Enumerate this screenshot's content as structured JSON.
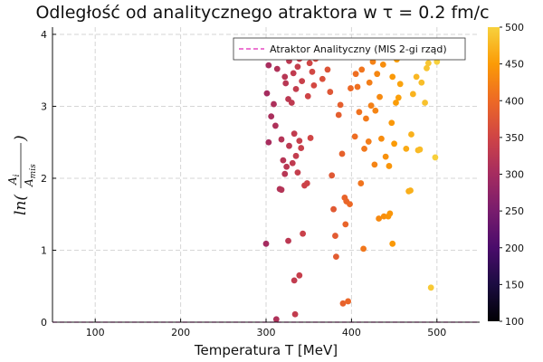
{
  "chart_data": {
    "type": "scatter",
    "title": "Odległość od analitycznego atraktora w τ = 0.2 fm/c",
    "xlabel": "Temperatura T [MeV]",
    "ylabel": {
      "prefix": "ln(",
      "numerator": "A",
      "numerator_sub": "i",
      "denominator": "A",
      "denominator_sub": "mis",
      "suffix": ")"
    },
    "xlim": [
      50,
      550
    ],
    "ylim": [
      0,
      4.1
    ],
    "xticks": [
      100,
      200,
      300,
      400,
      500
    ],
    "xtick_labels": [
      "100",
      "200",
      "300",
      "400",
      "500"
    ],
    "yticks": [
      0,
      1,
      2,
      3,
      4
    ],
    "ytick_labels": [
      "0",
      "1",
      "2",
      "3",
      "4"
    ],
    "grid": true,
    "colormap": "inferno",
    "colorbar": {
      "range": [
        100,
        500
      ],
      "ticks": [
        100,
        150,
        200,
        250,
        300,
        350,
        400,
        450,
        500
      ],
      "tick_labels": [
        "100",
        "150",
        "200",
        "250",
        "300",
        "350",
        "400",
        "450",
        "500"
      ]
    },
    "legend": {
      "placement": "top-right",
      "entries": [
        "Atraktor Analityczny (MIS 2-gi rząd)"
      ]
    },
    "series": [
      {
        "name": "Atraktor Analityczny (MIS 2-gi rząd)",
        "kind": "line",
        "color": "#e026b8",
        "x": [
          50,
          550
        ],
        "y": [
          0,
          0
        ]
      },
      {
        "kind": "scatter",
        "points": [
          [
            301,
            3.18
          ],
          [
            303,
            3.57
          ],
          [
            303,
            2.5
          ],
          [
            306,
            2.86
          ],
          [
            308,
            3.78
          ],
          [
            309,
            3.03
          ],
          [
            311,
            2.73
          ],
          [
            312,
            3.85
          ],
          [
            313,
            3.52
          ],
          [
            316,
            3.76
          ],
          [
            318,
            3.88
          ],
          [
            320,
            3.7
          ],
          [
            322,
            3.41
          ],
          [
            323,
            3.32
          ],
          [
            326,
            3.1
          ],
          [
            327,
            3.63
          ],
          [
            330,
            3.05
          ],
          [
            332,
            3.46
          ],
          [
            334,
            3.88
          ],
          [
            335,
            3.24
          ],
          [
            337,
            3.55
          ],
          [
            339,
            3.66
          ],
          [
            341,
            3.84
          ],
          [
            342,
            3.35
          ],
          [
            345,
            3.79
          ],
          [
            347,
            3.71
          ],
          [
            349,
            3.14
          ],
          [
            351,
            3.6
          ],
          [
            354,
            3.48
          ],
          [
            356,
            3.29
          ],
          [
            358,
            3.66
          ],
          [
            361,
            3.91
          ],
          [
            364,
            3.73
          ],
          [
            366,
            3.38
          ],
          [
            318,
            2.54
          ],
          [
            320,
            2.25
          ],
          [
            322,
            2.06
          ],
          [
            324,
            2.16
          ],
          [
            327,
            2.45
          ],
          [
            331,
            2.21
          ],
          [
            333,
            2.62
          ],
          [
            335,
            2.31
          ],
          [
            337,
            2.08
          ],
          [
            339,
            2.52
          ],
          [
            341,
            2.42
          ],
          [
            345,
            1.9
          ],
          [
            348,
            1.93
          ],
          [
            352,
            2.56
          ],
          [
            316,
            1.85
          ],
          [
            318,
            1.84
          ],
          [
            300,
            1.09
          ],
          [
            326,
            1.13
          ],
          [
            343,
            1.23
          ],
          [
            339,
            0.65
          ],
          [
            333,
            0.58
          ],
          [
            334,
            0.11
          ],
          [
            312,
            0.04
          ],
          [
            372,
            3.51
          ],
          [
            375,
            3.2
          ],
          [
            377,
            2.04
          ],
          [
            379,
            1.57
          ],
          [
            381,
            1.2
          ],
          [
            382,
            0.91
          ],
          [
            385,
            2.88
          ],
          [
            387,
            3.02
          ],
          [
            389,
            2.34
          ],
          [
            390,
            0.26
          ],
          [
            392,
            1.73
          ],
          [
            393,
            1.36
          ],
          [
            394,
            1.68
          ],
          [
            396,
            0.29
          ],
          [
            398,
            1.64
          ],
          [
            399,
            3.25
          ],
          [
            402,
            3.77
          ],
          [
            404,
            2.58
          ],
          [
            405,
            3.45
          ],
          [
            407,
            3.27
          ],
          [
            409,
            2.92
          ],
          [
            411,
            1.93
          ],
          [
            412,
            3.51
          ],
          [
            414,
            1.02
          ],
          [
            415,
            2.41
          ],
          [
            417,
            2.83
          ],
          [
            418,
            3.7
          ],
          [
            420,
            2.51
          ],
          [
            421,
            3.33
          ],
          [
            423,
            3.01
          ],
          [
            424,
            3.9
          ],
          [
            425,
            3.62
          ],
          [
            427,
            2.19
          ],
          [
            428,
            2.94
          ],
          [
            430,
            3.45
          ],
          [
            432,
            1.44
          ],
          [
            433,
            3.13
          ],
          [
            435,
            2.55
          ],
          [
            437,
            3.58
          ],
          [
            438,
            1.47
          ],
          [
            440,
            2.3
          ],
          [
            441,
            3.72
          ],
          [
            443,
            1.47
          ],
          [
            444,
            2.17
          ],
          [
            445,
            1.51
          ],
          [
            447,
            2.77
          ],
          [
            448,
            1.09
          ],
          [
            448,
            3.41
          ],
          [
            450,
            2.48
          ],
          [
            452,
            3.05
          ],
          [
            453,
            3.65
          ],
          [
            455,
            3.12
          ],
          [
            457,
            3.31
          ],
          [
            464,
            2.41
          ],
          [
            467,
            1.82
          ],
          [
            469,
            1.83
          ],
          [
            470,
            2.61
          ],
          [
            472,
            3.17
          ],
          [
            474,
            3.9
          ],
          [
            476,
            3.41
          ],
          [
            478,
            2.39
          ],
          [
            480,
            2.4
          ],
          [
            482,
            3.33
          ],
          [
            484,
            3.78
          ],
          [
            486,
            3.05
          ],
          [
            488,
            3.53
          ],
          [
            490,
            3.6
          ],
          [
            493,
            0.48
          ],
          [
            498,
            2.29
          ],
          [
            500,
            3.62
          ]
        ]
      }
    ]
  }
}
